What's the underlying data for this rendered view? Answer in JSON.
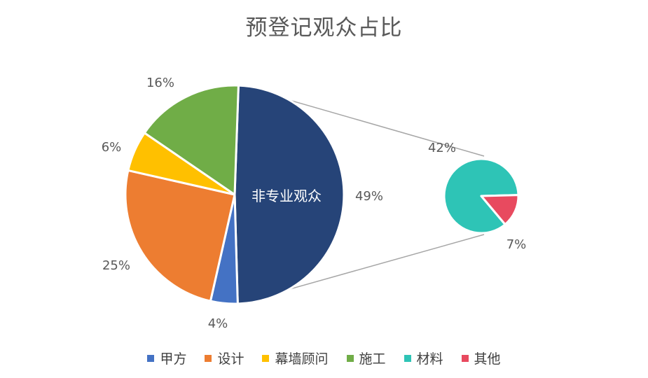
{
  "chart_data": {
    "type": "pie",
    "subtype": "pie-of-pie",
    "title": "预登记观众占比",
    "main_pie": {
      "slices": [
        {
          "name": "非专业观众",
          "value": 49,
          "label": "49%",
          "inner_label": "非专业观众",
          "color": "#264478"
        },
        {
          "name": "甲方",
          "value": 4,
          "label": "4%",
          "color": "#4472C4"
        },
        {
          "name": "设计",
          "value": 25,
          "label": "25%",
          "color": "#ED7D31"
        },
        {
          "name": "幕墙顾问",
          "value": 6,
          "label": "6%",
          "color": "#FFC000"
        },
        {
          "name": "施工",
          "value": 16,
          "label": "16%",
          "color": "#70AD47"
        }
      ]
    },
    "secondary_pie": {
      "slices": [
        {
          "name": "材料",
          "value": 42,
          "label": "42%",
          "color": "#2EC4B6"
        },
        {
          "name": "其他",
          "value": 7,
          "label": "7%",
          "color": "#E84A5F"
        }
      ]
    },
    "legend": {
      "placement": "bottom",
      "items": [
        {
          "name": "甲方",
          "color": "#4472C4"
        },
        {
          "name": "设计",
          "color": "#ED7D31"
        },
        {
          "name": "幕墙顾问",
          "color": "#FFC000"
        },
        {
          "name": "施工",
          "color": "#70AD47"
        },
        {
          "name": "材料",
          "color": "#2EC4B6"
        },
        {
          "name": "其他",
          "color": "#E84A5F"
        }
      ]
    }
  }
}
